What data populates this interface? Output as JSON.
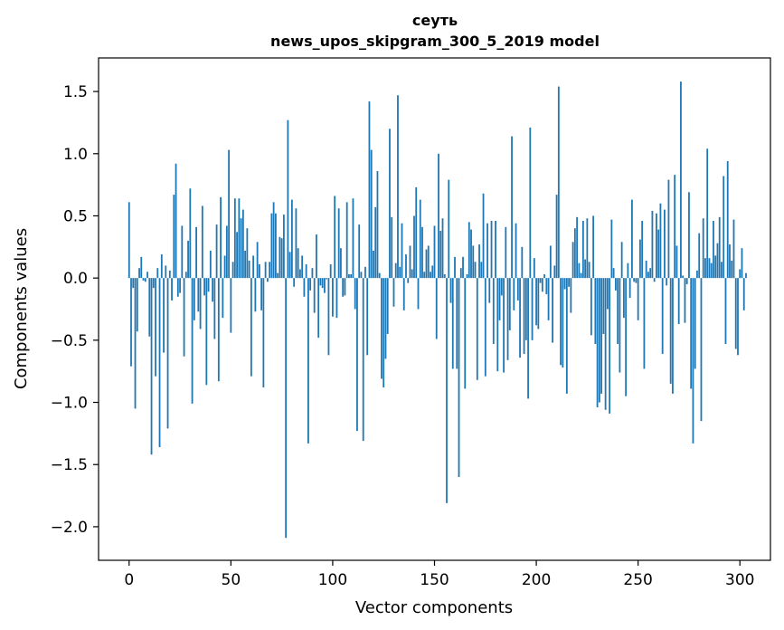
{
  "chart_data": {
    "type": "bar",
    "title_line1": "сеуть",
    "title_line2": "news_upos_skipgram_300_5_2019 model",
    "xlabel": "Vector components",
    "ylabel": "Components values",
    "xlim": [
      -15,
      315
    ],
    "ylim": [
      -2.27,
      1.77
    ],
    "bar_color": "#1f77b4",
    "x_ticks": [
      {
        "value": 0,
        "label": "0"
      },
      {
        "value": 50,
        "label": "50"
      },
      {
        "value": 100,
        "label": "100"
      },
      {
        "value": 150,
        "label": "150"
      },
      {
        "value": 200,
        "label": "200"
      },
      {
        "value": 250,
        "label": "250"
      },
      {
        "value": 300,
        "label": "300"
      }
    ],
    "y_ticks": [
      {
        "value": 1.5,
        "label": "1.5"
      },
      {
        "value": 1.0,
        "label": "1.0"
      },
      {
        "value": 0.5,
        "label": "0.5"
      },
      {
        "value": 0.0,
        "label": "0.0"
      },
      {
        "value": -0.5,
        "label": "−0.5"
      },
      {
        "value": -1.0,
        "label": "−1.0"
      },
      {
        "value": -1.5,
        "label": "−1.5"
      },
      {
        "value": -2.0,
        "label": "−2.0"
      }
    ],
    "values": [
      0.61,
      -0.71,
      -0.08,
      -1.05,
      -0.43,
      0.08,
      0.17,
      -0.02,
      -0.03,
      0.05,
      -0.47,
      -1.42,
      -0.08,
      -0.79,
      0.08,
      -1.36,
      0.19,
      -0.6,
      0.1,
      -1.21,
      0.06,
      -0.18,
      0.67,
      0.92,
      -0.15,
      -0.12,
      0.42,
      -0.63,
      0.05,
      0.3,
      0.72,
      -1.01,
      -0.34,
      0.41,
      -0.27,
      -0.41,
      0.58,
      -0.14,
      -0.86,
      -0.11,
      0.22,
      -0.19,
      -0.49,
      0.43,
      -0.83,
      0.65,
      -0.32,
      0.18,
      0.42,
      1.03,
      -0.44,
      0.13,
      0.64,
      0.37,
      0.64,
      0.48,
      0.55,
      0.22,
      0.4,
      0.14,
      -0.79,
      0.18,
      -0.27,
      0.29,
      0.11,
      -0.26,
      -0.88,
      0.13,
      -0.03,
      0.13,
      0.52,
      0.61,
      0.52,
      0.04,
      0.33,
      0.32,
      0.51,
      -2.09,
      1.27,
      0.21,
      0.63,
      -0.07,
      0.56,
      0.24,
      0.07,
      0.18,
      -0.15,
      0.11,
      -1.33,
      -0.1,
      0.08,
      -0.28,
      0.35,
      -0.48,
      -0.06,
      -0.08,
      -0.12,
      -0.01,
      -0.62,
      0.11,
      -0.31,
      0.66,
      -0.32,
      0.56,
      0.24,
      -0.15,
      -0.14,
      0.61,
      0.03,
      0.03,
      0.64,
      -0.25,
      -1.23,
      0.43,
      0.05,
      -1.31,
      0.09,
      -0.62,
      1.42,
      1.03,
      0.22,
      0.57,
      0.86,
      0.04,
      -0.81,
      -0.88,
      -0.65,
      -0.45,
      1.2,
      0.49,
      -0.23,
      0.12,
      1.47,
      0.09,
      0.44,
      -0.26,
      0.19,
      -0.04,
      0.26,
      0.07,
      0.5,
      0.73,
      -0.25,
      0.63,
      0.41,
      0.05,
      0.23,
      0.26,
      0.05,
      0.1,
      0.42,
      -0.49,
      1.0,
      0.38,
      0.48,
      0.03,
      -1.81,
      0.79,
      -0.2,
      -0.73,
      0.17,
      -0.73,
      -1.6,
      0.08,
      0.17,
      -0.89,
      0.03,
      0.45,
      0.39,
      0.26,
      0.13,
      -0.82,
      0.27,
      0.13,
      0.68,
      -0.79,
      0.44,
      -0.2,
      0.46,
      -0.53,
      0.46,
      -0.75,
      -0.34,
      -0.14,
      -0.76,
      0.41,
      -0.66,
      -0.42,
      1.14,
      -0.26,
      0.44,
      -0.18,
      -0.64,
      0.25,
      -0.61,
      -0.5,
      -0.97,
      1.21,
      -0.5,
      0.16,
      -0.38,
      -0.41,
      -0.04,
      -0.11,
      0.03,
      -0.13,
      -0.34,
      0.26,
      -0.52,
      0.1,
      0.67,
      1.54,
      -0.7,
      -0.72,
      -0.09,
      -0.93,
      -0.07,
      -0.28,
      0.29,
      0.4,
      0.49,
      0.12,
      0.04,
      0.46,
      0.15,
      0.48,
      0.13,
      -0.46,
      0.5,
      -0.53,
      -1.04,
      -1.0,
      -0.93,
      -0.45,
      -1.06,
      -0.25,
      -1.09,
      0.47,
      0.08,
      -0.1,
      -0.53,
      -0.76,
      0.29,
      -0.32,
      -0.95,
      0.12,
      -0.16,
      0.63,
      -0.03,
      -0.04,
      -0.34,
      0.31,
      0.46,
      -0.73,
      0.14,
      0.05,
      0.08,
      0.54,
      -0.03,
      0.52,
      0.39,
      0.6,
      -0.61,
      0.55,
      -0.06,
      0.79,
      -0.85,
      -0.93,
      0.83,
      0.26,
      -0.37,
      1.58,
      0.02,
      -0.36,
      -0.05,
      0.69,
      -0.89,
      -1.33,
      -0.73,
      0.06,
      0.36,
      -1.15,
      0.48,
      0.16,
      1.04,
      0.16,
      0.12,
      0.46,
      0.18,
      0.28,
      0.49,
      0.13,
      0.82,
      -0.53,
      0.94,
      0.27,
      0.14,
      0.47,
      -0.57,
      -0.62,
      0.07,
      0.24,
      -0.26,
      0.04
    ]
  }
}
